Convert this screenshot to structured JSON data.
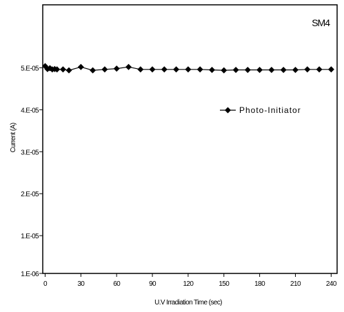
{
  "chart_data": {
    "type": "line",
    "annotation": "SM4",
    "xlabel": "U.V Irradiation Time (sec)",
    "ylabel": "Current (A)",
    "xlim": [
      -2,
      245
    ],
    "ylim": [
      1e-06,
      6.5e-05
    ],
    "xticks": [
      0,
      30,
      60,
      90,
      120,
      150,
      180,
      210,
      240
    ],
    "xtick_labels": [
      "0",
      "30",
      "60",
      "90",
      "120",
      "150",
      "180",
      "210",
      "240"
    ],
    "yticks": [
      1e-06,
      1e-05,
      2e-05,
      3e-05,
      4e-05,
      5e-05
    ],
    "ytick_labels": [
      "1.E-06",
      "1.E-05",
      "2.E-05",
      "3.E-05",
      "4.E-05",
      "5.E-05"
    ],
    "grid": false,
    "legend": {
      "position": "right",
      "marker": "diamond"
    },
    "series": [
      {
        "name": "Photo-Initiator",
        "marker": "diamond",
        "color": "#000000",
        "x": [
          0,
          2,
          4,
          6,
          8,
          10,
          15,
          20,
          30,
          40,
          50,
          60,
          70,
          80,
          90,
          100,
          110,
          120,
          130,
          140,
          150,
          160,
          170,
          180,
          190,
          200,
          210,
          220,
          230,
          240
        ],
        "y": [
          5.04e-05,
          4.97e-05,
          4.99e-05,
          4.96e-05,
          4.97e-05,
          4.96e-05,
          4.96e-05,
          4.94e-05,
          5.02e-05,
          4.94e-05,
          4.96e-05,
          4.98e-05,
          5.02e-05,
          4.96e-05,
          4.96e-05,
          4.96e-05,
          4.96e-05,
          4.96e-05,
          4.96e-05,
          4.95e-05,
          4.94e-05,
          4.95e-05,
          4.95e-05,
          4.95e-05,
          4.95e-05,
          4.95e-05,
          4.95e-05,
          4.96e-05,
          4.96e-05,
          4.96e-05
        ]
      }
    ]
  }
}
